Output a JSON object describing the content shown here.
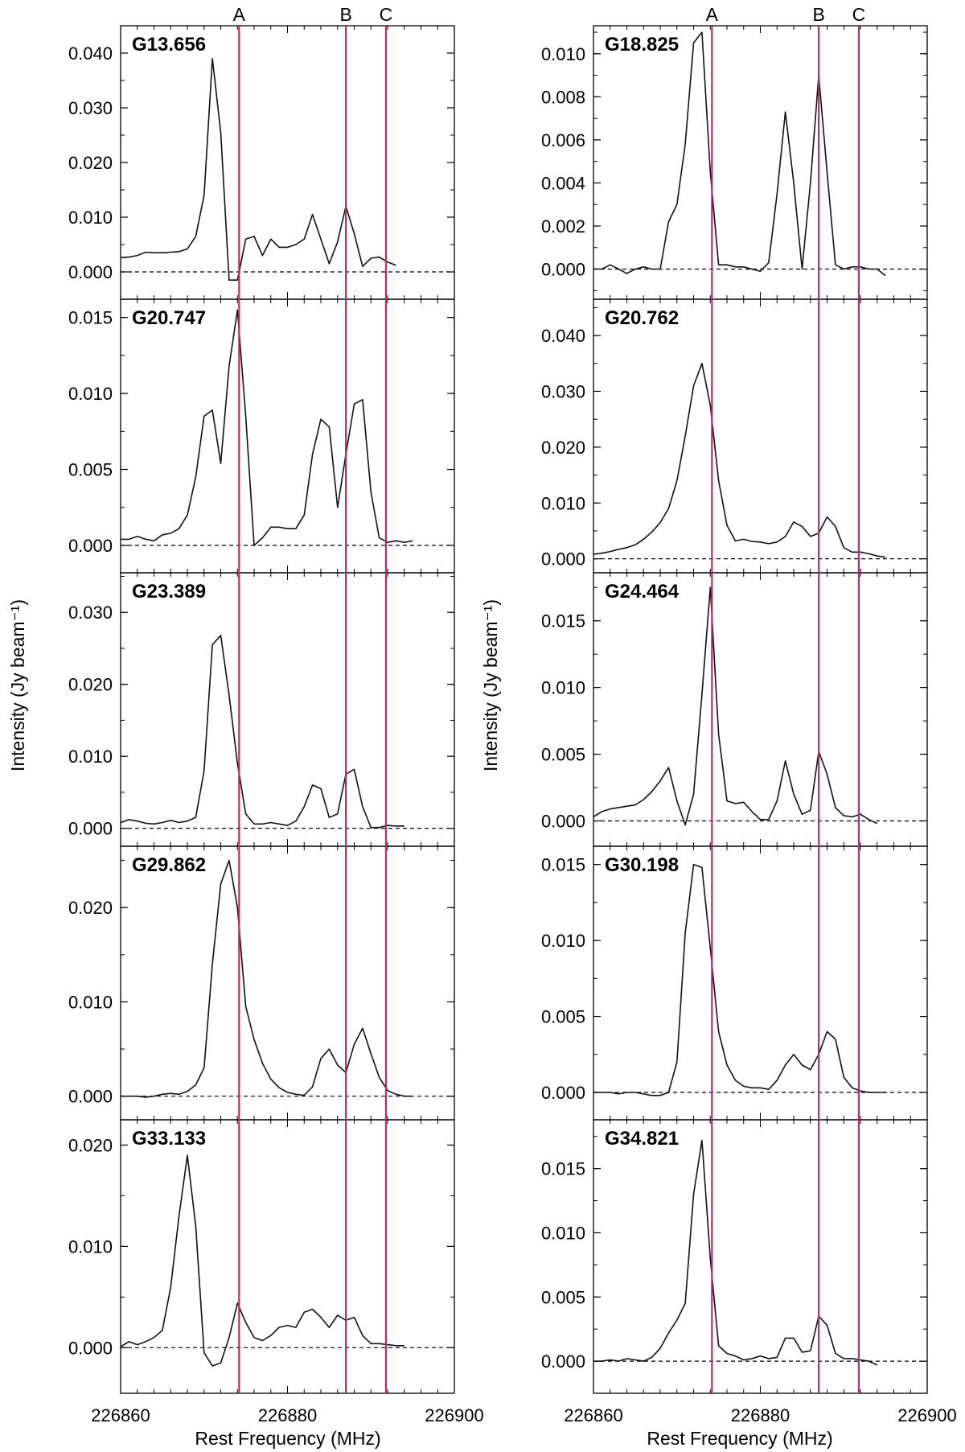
{
  "figure": {
    "ylabel": "Intensity (Jy beam⁻¹)",
    "xlabel": "Rest Frequency (MHz)",
    "line_color": "#b0306a",
    "spectrum_color": "#111111",
    "baseline_style": "dashed"
  },
  "chart_data": [
    {
      "type": "line",
      "column": "left",
      "row": 0,
      "title": "G13.656",
      "x_start": 226860,
      "x_step": 1,
      "ylim": [
        -0.005,
        0.045
      ],
      "yticks": [
        0.0,
        0.01,
        0.02,
        0.03,
        0.04
      ],
      "ytick_labels": [
        "0.000",
        "0.010",
        "0.020",
        "0.030",
        "0.040"
      ],
      "values": [
        0.0026,
        0.0027,
        0.003,
        0.0036,
        0.0035,
        0.0035,
        0.0036,
        0.0037,
        0.0042,
        0.0065,
        0.014,
        0.039,
        0.0255,
        -0.0015,
        -0.0015,
        0.006,
        0.0065,
        0.003,
        0.006,
        0.0045,
        0.0045,
        0.005,
        0.006,
        0.0105,
        0.006,
        0.0015,
        0.0055,
        0.012,
        0.007,
        0.001,
        0.0025,
        0.0027,
        0.0018,
        0.0012
      ]
    },
    {
      "type": "line",
      "column": "left",
      "row": 1,
      "title": "G20.747",
      "x_start": 226860,
      "x_step": 1,
      "ylim": [
        -0.0018,
        0.0162
      ],
      "yticks": [
        0.0,
        0.005,
        0.01,
        0.015
      ],
      "ytick_labels": [
        "0.000",
        "0.005",
        "0.010",
        "0.015"
      ],
      "values": [
        0.0004,
        0.0004,
        0.0006,
        0.0004,
        0.0003,
        0.0007,
        0.0008,
        0.0011,
        0.002,
        0.0045,
        0.0085,
        0.0089,
        0.0054,
        0.0118,
        0.0155,
        0.0085,
        0.0,
        0.0005,
        0.0012,
        0.0012,
        0.0011,
        0.0011,
        0.002,
        0.006,
        0.0083,
        0.0078,
        0.0025,
        0.006,
        0.0093,
        0.0096,
        0.0035,
        0.0005,
        0.0002,
        0.0003,
        0.0002,
        0.0003
      ]
    },
    {
      "type": "line",
      "column": "left",
      "row": 2,
      "title": "G23.389",
      "x_start": 226860,
      "x_step": 1,
      "ylim": [
        -0.0025,
        0.0355
      ],
      "yticks": [
        0.0,
        0.01,
        0.02,
        0.03
      ],
      "ytick_labels": [
        "0.000",
        "0.010",
        "0.020",
        "0.030"
      ],
      "values": [
        0.0008,
        0.0012,
        0.001,
        0.0007,
        0.0006,
        0.0008,
        0.0011,
        0.0008,
        0.001,
        0.0015,
        0.008,
        0.0255,
        0.0268,
        0.0185,
        0.009,
        0.002,
        0.0006,
        0.0006,
        0.0008,
        0.0006,
        0.0004,
        0.001,
        0.003,
        0.006,
        0.0055,
        0.0015,
        0.002,
        0.0075,
        0.0082,
        0.003,
        0.0001,
        0.0001,
        0.0004,
        0.0003,
        0.0003
      ]
    },
    {
      "type": "line",
      "column": "left",
      "row": 3,
      "title": "G29.862",
      "x_start": 226860,
      "x_step": 1,
      "ylim": [
        -0.0025,
        0.0265
      ],
      "yticks": [
        0.0,
        0.01,
        0.02
      ],
      "ytick_labels": [
        "0.000",
        "0.010",
        "0.020"
      ],
      "values": [
        0.0,
        0.0,
        0.0,
        -0.0001,
        0.0,
        0.0002,
        0.0003,
        0.0002,
        0.0005,
        0.0012,
        0.003,
        0.014,
        0.0225,
        0.025,
        0.02,
        0.0095,
        0.006,
        0.0035,
        0.0018,
        0.0009,
        0.0004,
        0.0002,
        0.0001,
        0.001,
        0.004,
        0.005,
        0.0033,
        0.0025,
        0.0055,
        0.0072,
        0.0045,
        0.002,
        0.0006,
        0.0002,
        0.0,
        0.0
      ]
    },
    {
      "type": "line",
      "column": "left",
      "row": 4,
      "title": "G33.133",
      "x_start": 226860,
      "x_step": 1,
      "ylim": [
        -0.0045,
        0.0225
      ],
      "yticks": [
        0.0,
        0.01,
        0.02
      ],
      "ytick_labels": [
        "0.000",
        "0.010",
        "0.020"
      ],
      "values": [
        0.0001,
        0.0006,
        0.0003,
        0.0006,
        0.001,
        0.0017,
        0.006,
        0.013,
        0.019,
        0.012,
        -0.0005,
        -0.0018,
        -0.0015,
        0.001,
        0.0044,
        0.0025,
        0.001,
        0.0007,
        0.0012,
        0.002,
        0.0022,
        0.002,
        0.0035,
        0.0038,
        0.003,
        0.002,
        0.0032,
        0.0027,
        0.003,
        0.0012,
        0.0004,
        0.0004,
        0.0003,
        0.0002,
        0.0002
      ]
    },
    {
      "type": "line",
      "column": "right",
      "row": 0,
      "title": "G18.825",
      "x_start": 226860,
      "x_step": 1,
      "ylim": [
        -0.0014,
        0.0113
      ],
      "yticks": [
        0.0,
        0.002,
        0.004,
        0.006,
        0.008,
        0.01
      ],
      "ytick_labels": [
        "0.000",
        "0.002",
        "0.004",
        "0.006",
        "0.008",
        "0.010"
      ],
      "values": [
        0.0,
        0.0,
        0.0002,
        0.0,
        -0.0002,
        0.0,
        0.0001,
        0.0,
        0.0,
        0.0022,
        0.003,
        0.0058,
        0.0105,
        0.011,
        0.0045,
        0.0002,
        0.0002,
        0.0001,
        0.0001,
        0.0,
        -0.0001,
        0.0003,
        0.0035,
        0.0073,
        0.004,
        0.0,
        0.004,
        0.009,
        0.0045,
        0.0002,
        0.0,
        0.0001,
        0.0001,
        0.0,
        0.0,
        -0.0003
      ]
    },
    {
      "type": "line",
      "column": "right",
      "row": 1,
      "title": "G20.762",
      "x_start": 226860,
      "x_step": 1,
      "ylim": [
        -0.0025,
        0.0465
      ],
      "yticks": [
        0.0,
        0.01,
        0.02,
        0.03,
        0.04
      ],
      "ytick_labels": [
        "0.000",
        "0.010",
        "0.020",
        "0.030",
        "0.040"
      ],
      "values": [
        0.0008,
        0.001,
        0.0013,
        0.0017,
        0.002,
        0.0025,
        0.0035,
        0.0048,
        0.0065,
        0.009,
        0.014,
        0.022,
        0.031,
        0.035,
        0.0275,
        0.014,
        0.006,
        0.0032,
        0.0035,
        0.0031,
        0.003,
        0.0027,
        0.003,
        0.004,
        0.0066,
        0.0058,
        0.004,
        0.0046,
        0.0075,
        0.0058,
        0.002,
        0.0012,
        0.0012,
        0.0009,
        0.0005,
        0.0003
      ]
    },
    {
      "type": "line",
      "column": "right",
      "row": 2,
      "title": "G24.464",
      "x_start": 226860,
      "x_step": 1,
      "ylim": [
        -0.0019,
        0.0186
      ],
      "yticks": [
        0.0,
        0.005,
        0.01,
        0.015
      ],
      "ytick_labels": [
        "0.000",
        "0.005",
        "0.010",
        "0.015"
      ],
      "values": [
        0.0003,
        0.0007,
        0.0009,
        0.001,
        0.0011,
        0.0012,
        0.0016,
        0.0022,
        0.003,
        0.004,
        0.0015,
        -0.0003,
        0.002,
        0.0095,
        0.0175,
        0.0065,
        0.0015,
        0.0013,
        0.0014,
        0.0007,
        0.0001,
        0.0001,
        0.0015,
        0.0045,
        0.002,
        0.0005,
        0.0008,
        0.0052,
        0.0035,
        0.001,
        0.0004,
        0.0003,
        0.0005,
        0.0001,
        -0.0002
      ]
    },
    {
      "type": "line",
      "column": "right",
      "row": 3,
      "title": "G30.198",
      "x_start": 226860,
      "x_step": 1,
      "ylim": [
        -0.0018,
        0.0162
      ],
      "yticks": [
        0.0,
        0.005,
        0.01,
        0.015
      ],
      "ytick_labels": [
        "0.000",
        "0.005",
        "0.010",
        "0.015"
      ],
      "values": [
        0.0,
        0.0,
        0.0,
        -0.0001,
        0.0,
        0.0,
        -0.0001,
        -0.0002,
        -0.0002,
        0.0,
        0.002,
        0.0105,
        0.015,
        0.0148,
        0.0095,
        0.004,
        0.0018,
        0.0008,
        0.0004,
        0.0003,
        0.0003,
        0.0002,
        0.0008,
        0.0018,
        0.0025,
        0.0018,
        0.0015,
        0.0025,
        0.004,
        0.0035,
        0.001,
        0.0003,
        0.0001,
        0.0,
        0.0,
        0.0
      ]
    },
    {
      "type": "line",
      "column": "right",
      "row": 4,
      "title": "G34.821",
      "x_start": 226860,
      "x_step": 1,
      "ylim": [
        -0.0025,
        0.0188
      ],
      "yticks": [
        0.0,
        0.005,
        0.01,
        0.015
      ],
      "ytick_labels": [
        "0.000",
        "0.005",
        "0.010",
        "0.015"
      ],
      "values": [
        0.0,
        0.0,
        0.0001,
        0.0,
        0.0002,
        0.0001,
        0.0,
        0.0003,
        0.001,
        0.0022,
        0.0032,
        0.0045,
        0.013,
        0.0172,
        0.008,
        0.0012,
        0.0006,
        0.0004,
        0.0001,
        0.0002,
        0.0004,
        0.0002,
        0.0003,
        0.0018,
        0.0018,
        0.0007,
        0.0008,
        0.0035,
        0.0028,
        0.0006,
        0.0002,
        0.0002,
        0.0001,
        0.0,
        -0.0003
      ]
    }
  ],
  "shared_axes": {
    "xlim": [
      226860,
      226900
    ],
    "xticks": [
      226860,
      226880,
      226900
    ],
    "xtick_labels": [
      "226860",
      "226880",
      "226900"
    ],
    "reference_lines": [
      {
        "label": "A",
        "frequency": 226874.2
      },
      {
        "label": "B",
        "frequency": 226887.0
      },
      {
        "label": "C",
        "frequency": 226891.8
      }
    ]
  }
}
